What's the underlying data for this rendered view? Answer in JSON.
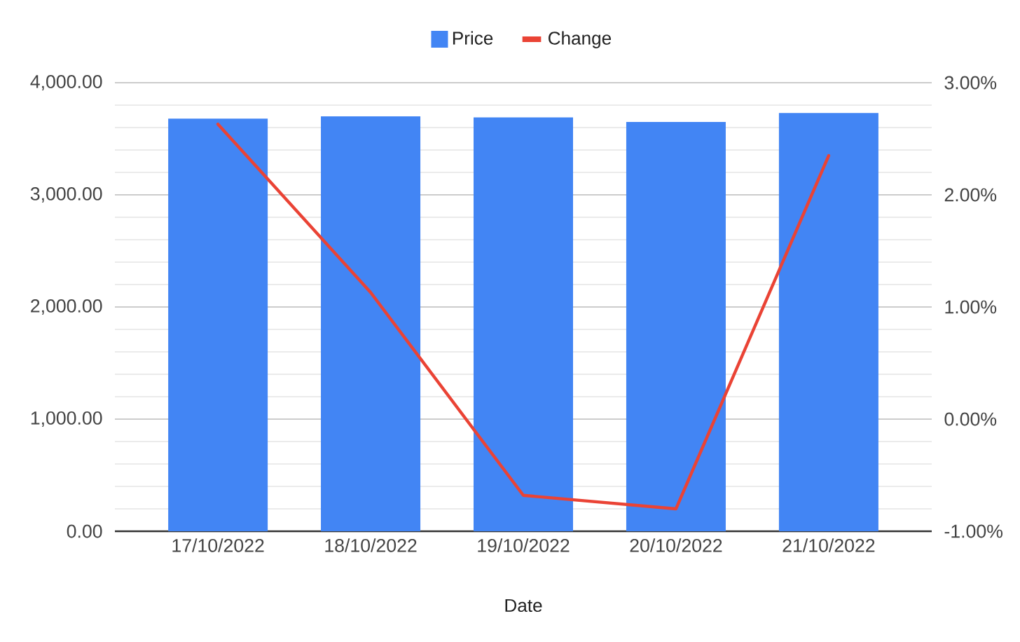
{
  "chart_data": {
    "type": "bar",
    "xlabel": "Date",
    "categories": [
      "17/10/2022",
      "18/10/2022",
      "19/10/2022",
      "20/10/2022",
      "21/10/2022"
    ],
    "series": [
      {
        "name": "Price",
        "color": "#4285f4",
        "values": [
          3680,
          3700,
          3690,
          3650,
          3730
        ]
      },
      {
        "name": "Change",
        "type": "line",
        "axis": "y2",
        "color": "#ea4335",
        "line_style": "solid",
        "values": [
          2.63,
          1.13,
          -0.68,
          -0.8,
          2.35
        ]
      }
    ],
    "ylim": [
      0,
      4000
    ],
    "yticks": [
      {
        "value": 0,
        "label": "0.00"
      },
      {
        "value": 1000,
        "label": "1,000.00"
      },
      {
        "value": 2000,
        "label": "2,000.00"
      },
      {
        "value": 3000,
        "label": "3,000.00"
      },
      {
        "value": 4000,
        "label": "4,000.00"
      }
    ],
    "y2lim": [
      -1,
      3
    ],
    "y2ticks": [
      {
        "value": -1,
        "label": "-1.00%"
      },
      {
        "value": 0,
        "label": "0.00%"
      },
      {
        "value": 1,
        "label": "1.00%"
      },
      {
        "value": 2,
        "label": "2.00%"
      },
      {
        "value": 3,
        "label": "3.00%"
      }
    ],
    "grid": "y",
    "legend": "top",
    "marker": "none"
  }
}
